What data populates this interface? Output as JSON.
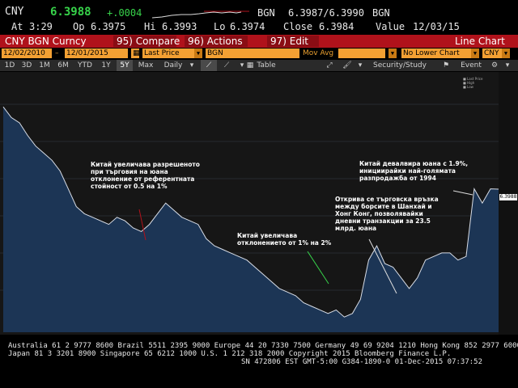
{
  "quote": {
    "ticker": "CNY",
    "last": "6.3988",
    "change": "+.0004",
    "source": "BGN",
    "bid_ask": "6.3987/6.3990",
    "source2": "BGN",
    "at_label": "At",
    "time": "3:29",
    "op_label": "Op",
    "open": "6.3975",
    "hi_label": "Hi",
    "high": "6.3993",
    "lo_label": "Lo",
    "low": "6.3974",
    "close_label": "Close",
    "close": "6.3984",
    "value_label": "Value",
    "value_date": "12/03/15"
  },
  "header": {
    "security": "CNY BGN Curncy",
    "compare": "95) Compare",
    "actions": "96) Actions",
    "edit": "97) Edit",
    "view": "Line Chart"
  },
  "inputs": {
    "start_date": "12/02/2010",
    "end_date": "12/01/2015",
    "field": "Last Price",
    "source": "BGN",
    "mov_avg_label": "Mov Avg",
    "lower_chart": "No Lower Chart",
    "currency": "CNY"
  },
  "toolbar": {
    "ranges": [
      "1D",
      "3D",
      "1M",
      "6M",
      "YTD",
      "1Y",
      "5Y",
      "Max"
    ],
    "selected_range": "5Y",
    "frequency": "Daily",
    "table_label": "Table",
    "security_study": "Security/Study",
    "event_label": "Event"
  },
  "chart_data": {
    "type": "area",
    "series": [
      {
        "name": "Last Price",
        "values": [
          6.63,
          6.6,
          6.585,
          6.55,
          6.52,
          6.5,
          6.48,
          6.45,
          6.4,
          6.35,
          6.33,
          6.32,
          6.31,
          6.3,
          6.32,
          6.31,
          6.29,
          6.28,
          6.3,
          6.33,
          6.36,
          6.34,
          6.32,
          6.31,
          6.3,
          6.26,
          6.24,
          6.23,
          6.22,
          6.21,
          6.2,
          6.18,
          6.16,
          6.14,
          6.12,
          6.11,
          6.1,
          6.08,
          6.07,
          6.06,
          6.05,
          6.06,
          6.04,
          6.05,
          6.09,
          6.2,
          6.24,
          6.19,
          6.18,
          6.15,
          6.12,
          6.15,
          6.2,
          6.21,
          6.22,
          6.22,
          6.2,
          6.21,
          6.4,
          6.36,
          6.4,
          6.399
        ]
      }
    ],
    "last_value_label": "6.3988"
  },
  "annotations": [
    "Китай увеличава разрешеното\nпри търговия на юана\nотклонение от референтната\nстойност от 0.5 на 1%",
    "Китай увеличава\nотклонението от 1% на 2%",
    "Открива се търговска връзка\nмежду борсите в Шанхай и\nХонг Конг, позволявайки\nдневни транзакции за 23.5\nмлрд. юана",
    "Китай девалвира юана с 1.9%,\nинициирайки най-голямата\nразпродажба от 1994"
  ],
  "footer": {
    "line1": "Australia 61 2 9777 8600 Brazil 5511 2395 9000 Europe 44 20 7330 7500 Germany 49 69 9204 1210 Hong Kong 852 2977 6000",
    "line2": "Japan 81 3 3201 8900          Singapore 65 6212 1000        U.S. 1 212 318 2000         Copyright 2015 Bloomberg Finance L.P.",
    "line3": "SN 472806 EST  GMT-5:00 G384-1890-0 01-Dec-2015 07:37:52"
  },
  "colors": {
    "accent_red": "#b0121b",
    "amber": "#f3a033",
    "up_green": "#37d34a",
    "area_fill": "#1c3555",
    "line": "#d8dde6"
  }
}
